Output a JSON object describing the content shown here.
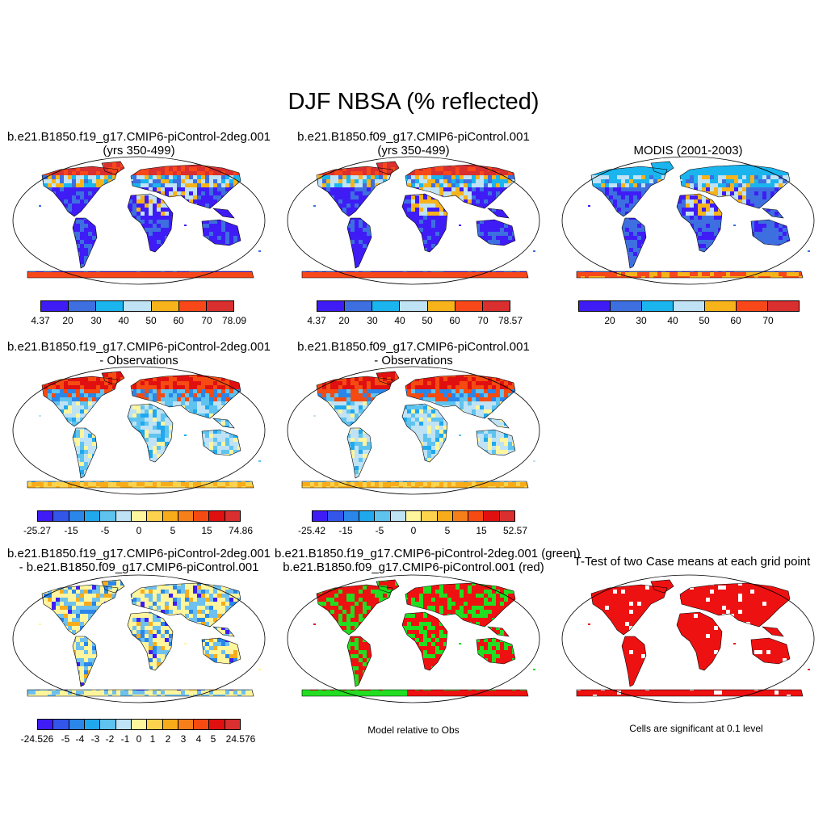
{
  "title": "DJF NBSA (% reflected)",
  "panels": {
    "p1": {
      "line1": "b.e21.B1850.f19_g17.CMIP6-piControl-2deg.001",
      "line2": "(yrs 350-499)"
    },
    "p2": {
      "line1": "b.e21.B1850.f09_g17.CMIP6-piControl.001",
      "line2": "(yrs 350-499)"
    },
    "p3": {
      "line1": "MODIS (2001-2003)"
    },
    "p4": {
      "line1": "b.e21.B1850.f19_g17.CMIP6-piControl-2deg.001",
      "line2": "- Observations"
    },
    "p5": {
      "line1": "b.e21.B1850.f09_g17.CMIP6-piControl.001",
      "line2": "- Observations"
    },
    "p7": {
      "line1": "b.e21.B1850.f19_g17.CMIP6-piControl-2deg.001",
      "line2": "- b.e21.B1850.f09_g17.CMIP6-piControl.001"
    },
    "p8": {
      "line1": "b.e21.B1850.f19_g17.CMIP6-piControl-2deg.001 (green)",
      "line2": "b.e21.B1850.f09_g17.CMIP6-piControl.001 (red)",
      "caption": "Model relative to Obs"
    },
    "p9": {
      "line1": "T-Test of two Case means at each grid point",
      "caption": "Cells are significant at 0.1 level"
    }
  },
  "colorbars": {
    "abs_colors": [
      "#3f1cf6",
      "#3d6fe0",
      "#1ab4ee",
      "#bfe2f4",
      "#f7b31a",
      "#f8481a",
      "#d92f2f"
    ],
    "cb1_labels": [
      "4.37",
      "20",
      "30",
      "40",
      "50",
      "60",
      "70",
      "78.09"
    ],
    "cb2_labels": [
      "4.37",
      "20",
      "30",
      "40",
      "50",
      "60",
      "70",
      "78.57"
    ],
    "cb3_labels": [
      "20",
      "30",
      "40",
      "50",
      "60",
      "70"
    ],
    "diff_colors": [
      "#3f1cf6",
      "#3355ea",
      "#2a86e8",
      "#1fa8ee",
      "#5fc3ef",
      "#bfe2f4",
      "#fff59d",
      "#fdd34d",
      "#f8ac1a",
      "#f77f1a",
      "#f54b12",
      "#e01010",
      "#d92f2f"
    ],
    "cb4_labels": [
      "-25.27",
      "-15",
      "-5",
      "0",
      "5",
      "15",
      "74.86"
    ],
    "cb5_labels": [
      "-25.42",
      "-15",
      "-5",
      "0",
      "5",
      "15",
      "52.57"
    ],
    "cb7_labels": [
      "-24.526",
      "-5",
      "-4",
      "-3",
      "-2",
      "-1",
      "0",
      "1",
      "2",
      "3",
      "4",
      "5",
      "24.576"
    ]
  },
  "fill_colors": {
    "land_blue": "#3f1cf6",
    "ice_red": "#f8481a",
    "diff_blue": "#6ec0ee",
    "diff_yellow": "#fff59d",
    "green": "#22dd22",
    "red": "#ee1111"
  }
}
